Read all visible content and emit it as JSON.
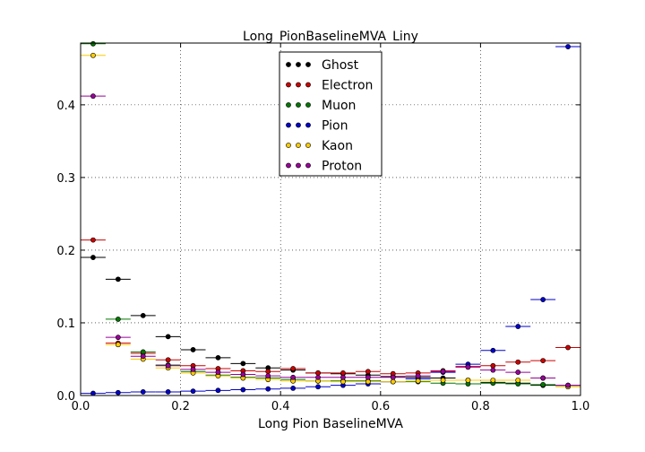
{
  "chart_data": {
    "type": "scatter",
    "title": "Long_PionBaselineMVA_Liny",
    "xlabel": "Long Pion BaselineMVA",
    "ylabel": "",
    "xlim": [
      0.0,
      1.0
    ],
    "ylim": [
      0.0,
      0.485
    ],
    "xticks": [
      "0.0",
      "0.2",
      "0.4",
      "0.6",
      "0.8",
      "1.0"
    ],
    "xtick_values": [
      0.0,
      0.2,
      0.4,
      0.6,
      0.8,
      1.0
    ],
    "yticks": [
      "0.0",
      "0.1",
      "0.2",
      "0.3",
      "0.4"
    ],
    "ytick_values": [
      0.0,
      0.1,
      0.2,
      0.3,
      0.4
    ],
    "grid": true,
    "legend_position": "top-center",
    "x": [
      0.025,
      0.075,
      0.125,
      0.175,
      0.225,
      0.275,
      0.325,
      0.375,
      0.425,
      0.475,
      0.525,
      0.575,
      0.625,
      0.675,
      0.725,
      0.775,
      0.825,
      0.875,
      0.925,
      0.975
    ],
    "x_halfwidth": 0.025,
    "series": [
      {
        "name": "Ghost",
        "color": "#000000",
        "values": [
          0.19,
          0.16,
          0.11,
          0.081,
          0.063,
          0.052,
          0.044,
          0.038,
          0.035,
          0.031,
          0.03,
          0.028,
          0.026,
          0.025,
          0.024,
          0.021,
          0.018,
          0.017,
          0.014,
          0.014
        ]
      },
      {
        "name": "Electron",
        "color": "#cc0000",
        "values": [
          0.214,
          0.072,
          0.058,
          0.049,
          0.041,
          0.037,
          0.034,
          0.033,
          0.037,
          0.031,
          0.031,
          0.033,
          0.03,
          0.031,
          0.034,
          0.04,
          0.041,
          0.046,
          0.048,
          0.066
        ]
      },
      {
        "name": "Muon",
        "color": "#007700",
        "values": [
          0.484,
          0.105,
          0.06,
          0.042,
          0.033,
          0.028,
          0.025,
          0.024,
          0.022,
          0.02,
          0.02,
          0.02,
          0.019,
          0.019,
          0.017,
          0.016,
          0.017,
          0.016,
          0.015,
          0.014
        ]
      },
      {
        "name": "Pion",
        "color": "#0000cc",
        "values": [
          0.003,
          0.004,
          0.005,
          0.005,
          0.006,
          0.007,
          0.008,
          0.009,
          0.01,
          0.012,
          0.014,
          0.016,
          0.019,
          0.023,
          0.032,
          0.043,
          0.062,
          0.095,
          0.132,
          0.48
        ]
      },
      {
        "name": "Kaon",
        "color": "#ffcc00",
        "values": [
          0.468,
          0.07,
          0.05,
          0.038,
          0.031,
          0.027,
          0.024,
          0.022,
          0.02,
          0.02,
          0.019,
          0.019,
          0.019,
          0.02,
          0.021,
          0.021,
          0.021,
          0.021,
          0.024,
          0.012
        ]
      },
      {
        "name": "Proton",
        "color": "#990099",
        "values": [
          0.412,
          0.08,
          0.054,
          0.041,
          0.036,
          0.032,
          0.029,
          0.027,
          0.025,
          0.025,
          0.025,
          0.025,
          0.025,
          0.027,
          0.033,
          0.039,
          0.035,
          0.032,
          0.024,
          0.014
        ]
      }
    ]
  }
}
